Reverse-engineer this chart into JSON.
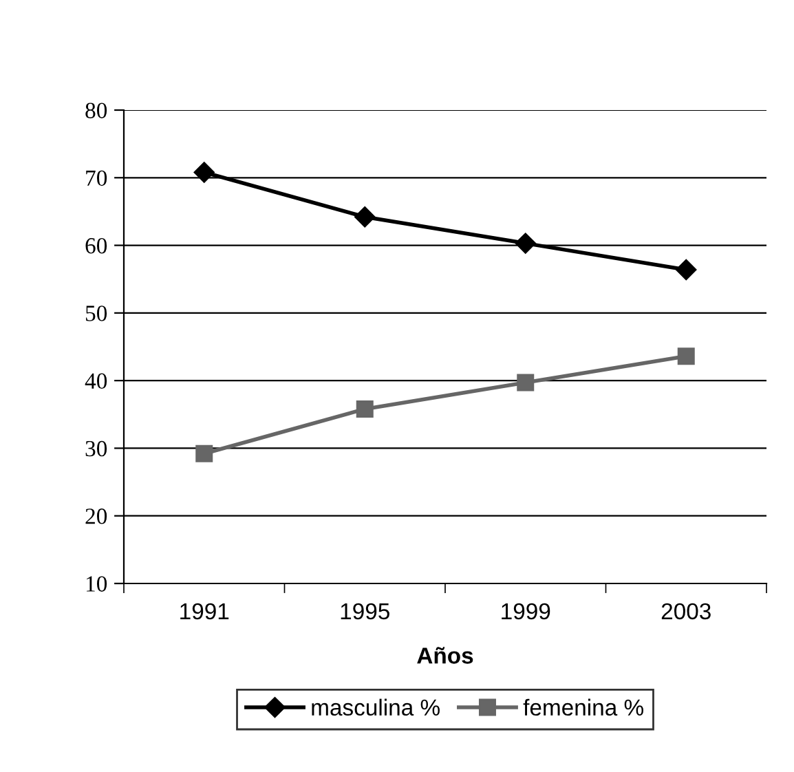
{
  "chart_data": {
    "type": "line",
    "xlabel": "Años",
    "categories": [
      "1991",
      "1995",
      "1999",
      "2003"
    ],
    "series": [
      {
        "name": "masculina %",
        "color": "#000000",
        "marker": "diamond",
        "values": [
          70.8,
          64.2,
          60.3,
          56.4
        ]
      },
      {
        "name": "femenina %",
        "color": "#666666",
        "marker": "square",
        "values": [
          29.2,
          35.8,
          39.7,
          43.6
        ]
      }
    ],
    "ylim": [
      10,
      80
    ],
    "yticks": [
      10,
      20,
      30,
      40,
      50,
      60,
      70,
      80
    ],
    "grid": "y",
    "legend": "bottom",
    "line_style": "solid"
  }
}
